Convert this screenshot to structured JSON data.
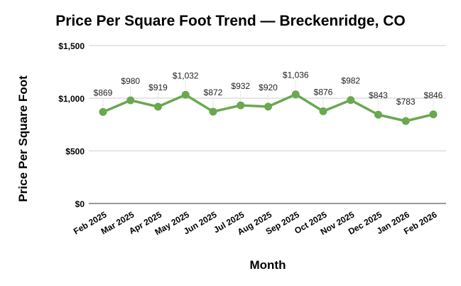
{
  "chart_data": {
    "type": "line",
    "title": "Price Per Square Foot Trend — Breckenridge, CO",
    "xlabel": "Month",
    "ylabel": "Price Per Square Foot",
    "categories": [
      "Feb 2025",
      "Mar 2025",
      "Apr 2025",
      "May 2025",
      "Jun 2025",
      "Jul 2025",
      "Aug 2025",
      "Sep 2025",
      "Oct 2025",
      "Nov 2025",
      "Dec 2025",
      "Jan 2026",
      "Feb 2026"
    ],
    "series": [
      {
        "name": "Price Per Square Foot",
        "values": [
          869,
          980,
          919,
          1032,
          872,
          932,
          920,
          1036,
          876,
          982,
          843,
          783,
          846
        ],
        "labels": [
          "$869",
          "$980",
          "$919",
          "$1,032",
          "$872",
          "$932",
          "$920",
          "$1,036",
          "$876",
          "$982",
          "$843",
          "$783",
          "$846"
        ],
        "color": "#6aa84f"
      }
    ],
    "ylim": [
      0,
      1500
    ],
    "yticks": [
      0,
      500,
      1000,
      1500
    ],
    "ytick_labels": [
      "$0",
      "$500",
      "$1,000",
      "$1,500"
    ],
    "grid": true,
    "legend": "none"
  }
}
